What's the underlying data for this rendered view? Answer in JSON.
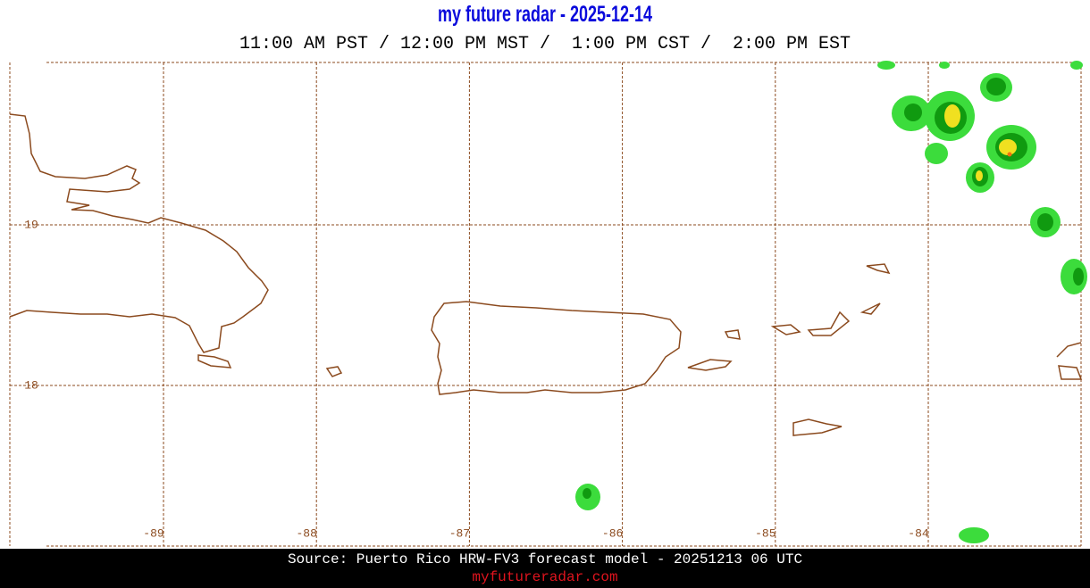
{
  "header": {
    "title": "my future radar - 2025-12-14",
    "times": "11:00 AM PST / 12:00 PM MST /  1:00 PM CST /  2:00 PM EST"
  },
  "map": {
    "longitude_labels": [
      -89,
      -88,
      -87,
      -86,
      -85,
      -84
    ],
    "latitude_labels": [
      19,
      18
    ]
  },
  "footer": {
    "source": "Source: Puerto Rico HRW-FV3 forecast model - 20251213 06 UTC",
    "site": "myfutureradar.com"
  }
}
